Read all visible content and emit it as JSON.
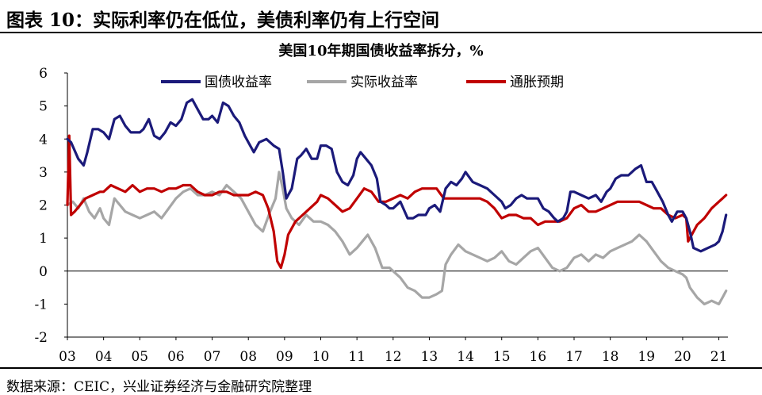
{
  "figure_title": "图表 10：实际利率仍在低位，美债利率仍有上行空间",
  "source_note": "数据来源：CEIC，兴业证券经济与金融研究院整理",
  "colors": {
    "nominal": "#1b1a7a",
    "real": "#a6a6a6",
    "inflation": "#c00000"
  },
  "chart_data": {
    "type": "line",
    "title": "美国10年期国债收益率拆分，%",
    "xlabel": "",
    "ylabel": "",
    "ylim": [
      -2,
      6
    ],
    "yticks": [
      "6",
      "5",
      "4",
      "3",
      "2",
      "1",
      "0",
      "-1",
      "-2"
    ],
    "xlim": [
      2003.0,
      2021.25
    ],
    "xticks": [
      "03",
      "04",
      "05",
      "06",
      "07",
      "08",
      "09",
      "10",
      "11",
      "12",
      "13",
      "14",
      "15",
      "16",
      "17",
      "18",
      "19",
      "20",
      "21"
    ],
    "legend_position": "top-left",
    "grid": false,
    "series": [
      {
        "name": "国债收益率",
        "color_key": "nominal",
        "x": [
          2003.0,
          2003.1,
          2003.3,
          2003.45,
          2003.55,
          2003.7,
          2003.85,
          2004.0,
          2004.15,
          2004.3,
          2004.45,
          2004.6,
          2004.75,
          2004.9,
          2005.0,
          2005.1,
          2005.25,
          2005.4,
          2005.55,
          2005.7,
          2005.85,
          2006.0,
          2006.15,
          2006.3,
          2006.45,
          2006.6,
          2006.75,
          2006.9,
          2007.0,
          2007.15,
          2007.3,
          2007.45,
          2007.6,
          2007.75,
          2007.9,
          2008.0,
          2008.15,
          2008.3,
          2008.5,
          2008.7,
          2008.85,
          2008.95,
          2009.05,
          2009.2,
          2009.35,
          2009.45,
          2009.6,
          2009.75,
          2009.9,
          2010.0,
          2010.15,
          2010.3,
          2010.45,
          2010.6,
          2010.75,
          2010.9,
          2011.0,
          2011.1,
          2011.25,
          2011.4,
          2011.55,
          2011.65,
          2011.8,
          2011.9,
          2012.0,
          2012.2,
          2012.4,
          2012.55,
          2012.7,
          2012.9,
          2013.0,
          2013.15,
          2013.3,
          2013.45,
          2013.6,
          2013.75,
          2013.9,
          2014.0,
          2014.2,
          2014.4,
          2014.6,
          2014.8,
          2015.0,
          2015.1,
          2015.25,
          2015.4,
          2015.55,
          2015.7,
          2015.85,
          2016.0,
          2016.15,
          2016.3,
          2016.45,
          2016.55,
          2016.7,
          2016.8,
          2016.9,
          2017.0,
          2017.2,
          2017.4,
          2017.6,
          2017.75,
          2017.9,
          2018.0,
          2018.15,
          2018.3,
          2018.5,
          2018.7,
          2018.85,
          2019.0,
          2019.15,
          2019.3,
          2019.45,
          2019.6,
          2019.7,
          2019.85,
          2020.0,
          2020.1,
          2020.2,
          2020.3,
          2020.5,
          2020.7,
          2020.9,
          2021.0,
          2021.1,
          2021.2
        ],
        "values": [
          4.0,
          3.9,
          3.4,
          3.2,
          3.6,
          4.3,
          4.3,
          4.2,
          4.0,
          4.6,
          4.7,
          4.4,
          4.2,
          4.2,
          4.2,
          4.3,
          4.6,
          4.1,
          4.0,
          4.2,
          4.5,
          4.4,
          4.6,
          5.1,
          5.2,
          4.9,
          4.6,
          4.6,
          4.7,
          4.5,
          5.1,
          5.0,
          4.7,
          4.5,
          4.1,
          3.9,
          3.6,
          3.9,
          4.0,
          3.8,
          3.7,
          3.0,
          2.2,
          2.5,
          3.4,
          3.5,
          3.7,
          3.4,
          3.4,
          3.8,
          3.8,
          3.7,
          3.0,
          2.7,
          2.6,
          2.9,
          3.4,
          3.6,
          3.4,
          3.2,
          2.8,
          2.1,
          2.0,
          1.9,
          1.9,
          2.1,
          1.6,
          1.6,
          1.7,
          1.7,
          1.9,
          2.0,
          1.8,
          2.5,
          2.7,
          2.6,
          2.8,
          3.0,
          2.7,
          2.6,
          2.5,
          2.3,
          2.1,
          1.9,
          2.0,
          2.2,
          2.3,
          2.2,
          2.2,
          2.2,
          1.9,
          1.8,
          1.6,
          1.5,
          1.6,
          1.8,
          2.4,
          2.4,
          2.3,
          2.2,
          2.3,
          2.1,
          2.4,
          2.5,
          2.8,
          2.9,
          2.9,
          3.1,
          3.2,
          2.7,
          2.7,
          2.4,
          2.1,
          1.7,
          1.5,
          1.8,
          1.8,
          1.6,
          1.2,
          0.7,
          0.6,
          0.7,
          0.8,
          0.9,
          1.2,
          1.7
        ]
      },
      {
        "name": "实际收益率",
        "color_key": "real",
        "x": [
          2003.0,
          2003.15,
          2003.3,
          2003.45,
          2003.6,
          2003.75,
          2003.9,
          2004.0,
          2004.15,
          2004.3,
          2004.45,
          2004.6,
          2004.8,
          2005.0,
          2005.2,
          2005.4,
          2005.6,
          2005.8,
          2006.0,
          2006.2,
          2006.4,
          2006.6,
          2006.8,
          2007.0,
          2007.2,
          2007.4,
          2007.6,
          2007.8,
          2008.0,
          2008.2,
          2008.4,
          2008.6,
          2008.75,
          2008.85,
          2008.95,
          2009.05,
          2009.2,
          2009.4,
          2009.6,
          2009.8,
          2010.0,
          2010.2,
          2010.4,
          2010.6,
          2010.8,
          2011.0,
          2011.15,
          2011.3,
          2011.5,
          2011.7,
          2011.9,
          2012.0,
          2012.2,
          2012.4,
          2012.6,
          2012.8,
          2013.0,
          2013.2,
          2013.35,
          2013.45,
          2013.6,
          2013.8,
          2014.0,
          2014.2,
          2014.4,
          2014.6,
          2014.8,
          2015.0,
          2015.2,
          2015.4,
          2015.6,
          2015.8,
          2016.0,
          2016.2,
          2016.4,
          2016.6,
          2016.8,
          2017.0,
          2017.2,
          2017.4,
          2017.6,
          2017.8,
          2018.0,
          2018.2,
          2018.4,
          2018.6,
          2018.8,
          2019.0,
          2019.2,
          2019.4,
          2019.6,
          2019.8,
          2020.0,
          2020.1,
          2020.2,
          2020.4,
          2020.6,
          2020.8,
          2021.0,
          2021.1,
          2021.2
        ],
        "values": [
          2.0,
          2.1,
          1.9,
          2.2,
          1.8,
          1.6,
          1.9,
          1.6,
          1.4,
          2.2,
          2.0,
          1.8,
          1.7,
          1.6,
          1.7,
          1.8,
          1.6,
          1.9,
          2.2,
          2.4,
          2.5,
          2.3,
          2.3,
          2.4,
          2.3,
          2.6,
          2.4,
          2.2,
          1.8,
          1.4,
          1.2,
          1.8,
          2.2,
          3.0,
          2.5,
          1.9,
          1.6,
          1.4,
          1.7,
          1.5,
          1.5,
          1.4,
          1.2,
          0.9,
          0.5,
          0.7,
          0.9,
          1.1,
          0.7,
          0.1,
          0.1,
          0.0,
          -0.2,
          -0.5,
          -0.6,
          -0.8,
          -0.8,
          -0.7,
          -0.6,
          0.2,
          0.5,
          0.8,
          0.6,
          0.5,
          0.4,
          0.3,
          0.4,
          0.6,
          0.3,
          0.2,
          0.4,
          0.6,
          0.7,
          0.4,
          0.1,
          0.0,
          0.1,
          0.4,
          0.5,
          0.3,
          0.5,
          0.4,
          0.6,
          0.7,
          0.8,
          0.9,
          1.1,
          0.9,
          0.6,
          0.3,
          0.1,
          0.0,
          -0.1,
          -0.2,
          -0.5,
          -0.8,
          -1.0,
          -0.9,
          -1.0,
          -0.8,
          -0.6
        ]
      },
      {
        "name": "通胀预期",
        "color_key": "inflation",
        "x": [
          2003.0,
          2003.05,
          2003.1,
          2003.2,
          2003.35,
          2003.5,
          2003.7,
          2003.9,
          2004.0,
          2004.2,
          2004.4,
          2004.6,
          2004.8,
          2005.0,
          2005.2,
          2005.4,
          2005.6,
          2005.8,
          2006.0,
          2006.2,
          2006.4,
          2006.6,
          2006.8,
          2007.0,
          2007.2,
          2007.4,
          2007.6,
          2007.8,
          2008.0,
          2008.2,
          2008.4,
          2008.55,
          2008.7,
          2008.8,
          2008.9,
          2009.0,
          2009.1,
          2009.3,
          2009.5,
          2009.7,
          2009.9,
          2010.0,
          2010.2,
          2010.4,
          2010.6,
          2010.8,
          2011.0,
          2011.2,
          2011.4,
          2011.6,
          2011.8,
          2012.0,
          2012.2,
          2012.4,
          2012.6,
          2012.8,
          2013.0,
          2013.2,
          2013.4,
          2013.6,
          2013.8,
          2014.0,
          2014.2,
          2014.4,
          2014.6,
          2014.8,
          2015.0,
          2015.2,
          2015.4,
          2015.6,
          2015.8,
          2016.0,
          2016.2,
          2016.4,
          2016.6,
          2016.8,
          2017.0,
          2017.2,
          2017.4,
          2017.6,
          2017.8,
          2018.0,
          2018.2,
          2018.4,
          2018.6,
          2018.8,
          2019.0,
          2019.2,
          2019.4,
          2019.6,
          2019.8,
          2020.0,
          2020.1,
          2020.15,
          2020.25,
          2020.4,
          2020.6,
          2020.8,
          2021.0,
          2021.1,
          2021.2
        ],
        "values": [
          2.0,
          4.1,
          1.7,
          1.8,
          2.0,
          2.2,
          2.3,
          2.4,
          2.4,
          2.6,
          2.5,
          2.4,
          2.6,
          2.4,
          2.5,
          2.5,
          2.4,
          2.5,
          2.5,
          2.6,
          2.6,
          2.4,
          2.3,
          2.3,
          2.4,
          2.4,
          2.3,
          2.3,
          2.3,
          2.4,
          2.3,
          1.9,
          1.2,
          0.3,
          0.1,
          0.5,
          1.1,
          1.5,
          1.7,
          1.9,
          2.1,
          2.3,
          2.2,
          2.0,
          1.8,
          1.9,
          2.2,
          2.5,
          2.4,
          2.1,
          2.1,
          2.2,
          2.3,
          2.2,
          2.4,
          2.5,
          2.5,
          2.5,
          2.2,
          2.2,
          2.2,
          2.2,
          2.2,
          2.2,
          2.1,
          1.9,
          1.6,
          1.7,
          1.7,
          1.6,
          1.6,
          1.4,
          1.5,
          1.5,
          1.5,
          1.6,
          1.9,
          2.0,
          1.8,
          1.8,
          1.9,
          2.0,
          2.1,
          2.1,
          2.1,
          2.1,
          2.0,
          1.9,
          1.9,
          1.7,
          1.6,
          1.7,
          1.6,
          0.9,
          1.1,
          1.4,
          1.6,
          1.9,
          2.1,
          2.2,
          2.3
        ]
      }
    ]
  }
}
